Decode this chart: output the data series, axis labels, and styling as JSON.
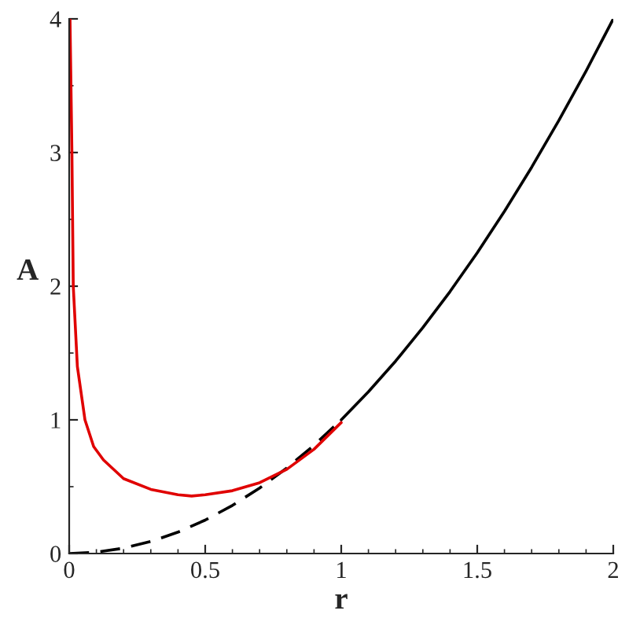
{
  "chart_data": {
    "type": "line",
    "xlabel": "r",
    "ylabel": "A",
    "xlim": [
      0,
      2
    ],
    "ylim": [
      0,
      4
    ],
    "xticks": [
      0,
      0.5,
      1,
      1.5,
      2
    ],
    "yticks": [
      0,
      1,
      2,
      3,
      4
    ],
    "grid": false,
    "legend": false,
    "series": [
      {
        "color": "#000000",
        "line_style": "solid",
        "x": [
          1,
          1.1,
          1.2,
          1.3,
          1.4,
          1.5,
          1.6,
          1.7,
          1.8,
          1.9,
          2
        ],
        "values": [
          1,
          1.21,
          1.44,
          1.69,
          1.96,
          2.25,
          2.56,
          2.89,
          3.24,
          3.61,
          4
        ]
      },
      {
        "color": "#000000",
        "line_style": "dashed",
        "x": [
          0,
          0.1,
          0.2,
          0.3,
          0.4,
          0.5,
          0.6,
          0.7,
          0.8,
          0.9,
          1
        ],
        "values": [
          0,
          0.01,
          0.04,
          0.09,
          0.16,
          0.25,
          0.36,
          0.49,
          0.64,
          0.81,
          1
        ]
      },
      {
        "color": "#e00000",
        "line_style": "solid",
        "x": [
          0.003,
          0.01,
          0.015,
          0.03,
          0.058,
          0.09,
          0.126,
          0.2,
          0.3,
          0.4,
          0.45,
          0.5,
          0.6,
          0.7,
          0.8,
          0.9,
          1
        ],
        "values": [
          4,
          3,
          2,
          1.4,
          1,
          0.8,
          0.7,
          0.56,
          0.48,
          0.44,
          0.43,
          0.44,
          0.47,
          0.53,
          0.63,
          0.78,
          0.98
        ]
      }
    ]
  }
}
